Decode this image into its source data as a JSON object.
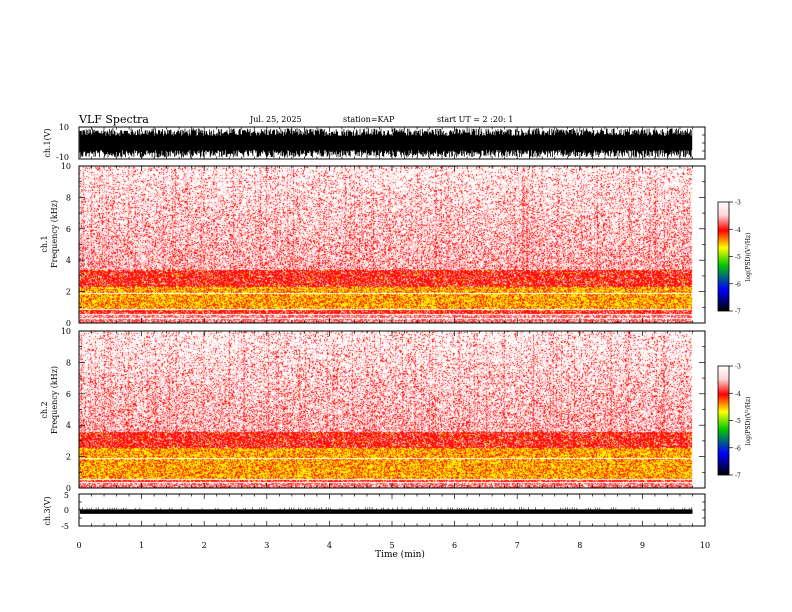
{
  "header": {
    "title": "VLF Spectra",
    "date": "Jul. 25, 2025",
    "station": "station=KAP",
    "start_ut": "start UT =  2 :20: 1"
  },
  "chart_data": {
    "type": "heatmap",
    "x": {
      "label": "Time (min)",
      "range": [
        0,
        10
      ],
      "ticks": [
        "0",
        "1",
        "2",
        "3",
        "4",
        "5",
        "6",
        "7",
        "8",
        "9",
        "10"
      ],
      "data_end": 9.8
    },
    "waveform_ch1": {
      "ylabel": "ch.1(V)",
      "range": [
        -10,
        10
      ],
      "ticks": [
        "10",
        "-10"
      ],
      "envelope_typical": [
        -8,
        8
      ]
    },
    "spectrogram_ch1": {
      "ylabel_channel": "ch.1",
      "ylabel": "Frequency (kHz)",
      "range": [
        0,
        10
      ],
      "ticks": [
        "10",
        "8",
        "6",
        "4",
        "2",
        "0"
      ],
      "bands_khz": {
        "yellow": [
          0.9,
          2.3
        ],
        "red": [
          0.6,
          3.4
        ],
        "faint_red": [
          3.4,
          10
        ]
      },
      "white_lines_khz": [
        0.35,
        0.55,
        0.9,
        1.9
      ]
    },
    "spectrogram_ch2": {
      "ylabel_channel": "ch.2",
      "ylabel": "Frequency (kHz)",
      "range": [
        0,
        10
      ],
      "ticks": [
        "10",
        "8",
        "6",
        "4",
        "2",
        "0"
      ],
      "bands_khz": {
        "yellow": [
          0.6,
          2.6
        ],
        "red": [
          0.4,
          3.6
        ],
        "faint_red": [
          3.6,
          10
        ]
      },
      "white_lines_khz": [
        0.4,
        0.6,
        1.9
      ]
    },
    "colorbar": {
      "label": "log(PSD)(V²/Hz)",
      "range": [
        -7,
        -3
      ],
      "ticks": [
        "-3",
        "-4",
        "-5",
        "-6",
        "-7"
      ],
      "colors": [
        "#ffffff",
        "#ffd0d0",
        "#ff0000",
        "#ffff00",
        "#00cc00",
        "#0000ff",
        "#000000"
      ]
    },
    "waveform_ch3": {
      "ylabel": "ch.3(V)",
      "range": [
        -5,
        5
      ],
      "ticks": [
        "5",
        "0",
        "-5"
      ],
      "level_band": [
        -1.2,
        0.2
      ]
    }
  }
}
